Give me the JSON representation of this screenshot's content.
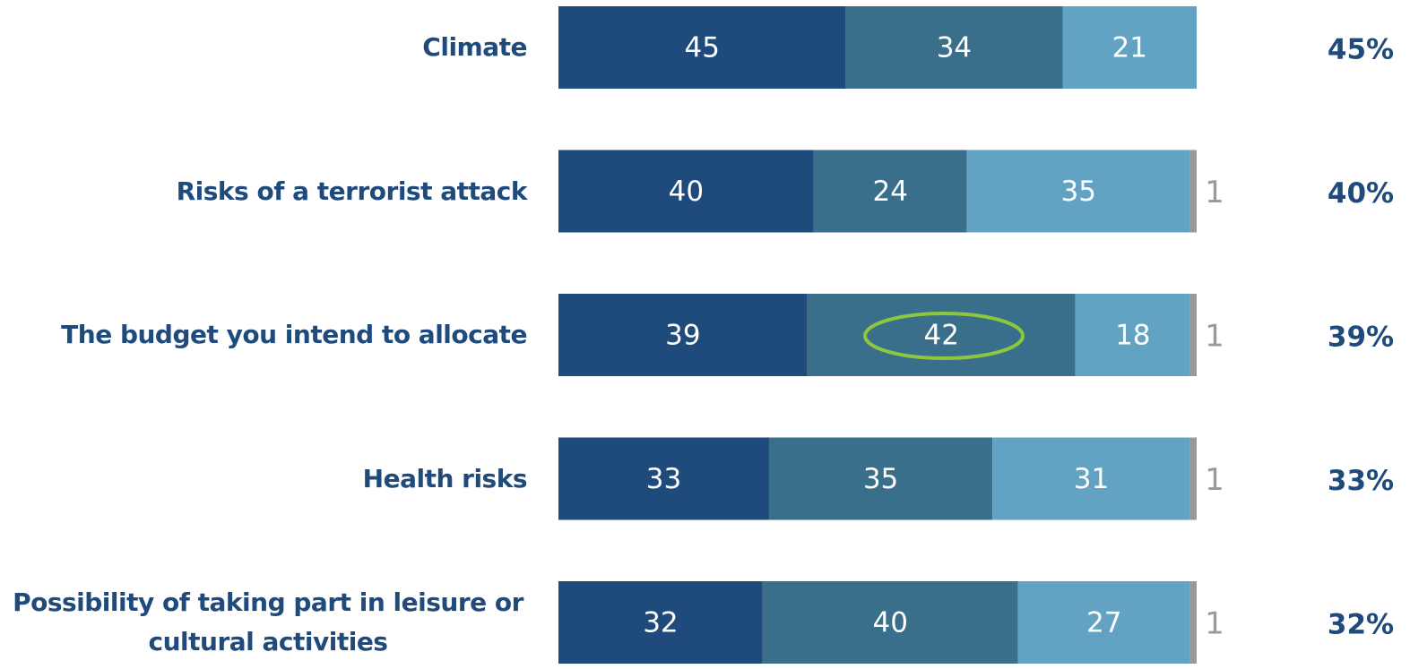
{
  "chart_data": {
    "type": "stacked-bar",
    "categories": [
      "Climate",
      "Risks of a terrorist attack",
      "The budget you intend to allocate",
      "Health risks",
      "Possibility of taking part in leisure or cultural activities"
    ],
    "series": [
      {
        "color": "#1f4a7c",
        "values": [
          45,
          40,
          39,
          33,
          32
        ]
      },
      {
        "color": "#3a6f8b",
        "values": [
          34,
          24,
          42,
          35,
          40
        ]
      },
      {
        "color": "#62a3c3",
        "values": [
          21,
          35,
          18,
          31,
          27
        ]
      },
      {
        "color": "#999999",
        "values": [
          null,
          1,
          1,
          1,
          1
        ]
      }
    ],
    "right_labels": [
      "45%",
      "40%",
      "39%",
      "33%",
      "32%"
    ],
    "xlim": [
      0,
      100
    ]
  }
}
